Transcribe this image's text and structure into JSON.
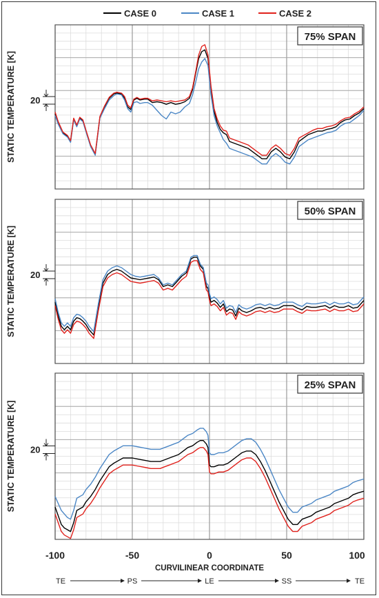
{
  "legend": [
    {
      "name": "CASE 0",
      "color": "#000000"
    },
    {
      "name": "CASE 1",
      "color": "#4a86c5"
    },
    {
      "name": "CASE 2",
      "color": "#e0201b"
    }
  ],
  "xlabel": "CURVILINEAR COORDINATE",
  "x_ticks": [
    "-100",
    "-50",
    "0",
    "50",
    "100"
  ],
  "region_labels": [
    "TE",
    "PS",
    "LE",
    "SS",
    "TE"
  ],
  "ylabel": "STATIC TEMPERATURE [K]",
  "scale_bar_label": "20",
  "chart_data": [
    {
      "type": "line",
      "title": "75% SPAN",
      "xlim": [
        -100,
        100
      ],
      "ylim": [
        -95,
        95
      ],
      "x": [
        -100,
        -98,
        -95,
        -92,
        -90,
        -88,
        -86,
        -84,
        -82,
        -80,
        -77,
        -74,
        -71,
        -68,
        -65,
        -62,
        -60,
        -57,
        -55,
        -53,
        -51,
        -49,
        -47,
        -45,
        -42,
        -40,
        -37,
        -34,
        -31,
        -28,
        -25,
        -22,
        -19,
        -16,
        -13,
        -11,
        -9,
        -7,
        -5,
        -3,
        -1,
        1,
        3,
        5,
        7,
        9,
        11,
        13,
        16,
        19,
        22,
        25,
        28,
        31,
        34,
        37,
        40,
        43,
        46,
        49,
        52,
        55,
        58,
        61,
        64,
        67,
        70,
        73,
        76,
        79,
        82,
        85,
        88,
        91,
        94,
        97,
        100
      ],
      "series": [
        {
          "name": "CASE 0",
          "values": [
            -8,
            -18,
            -30,
            -34,
            -40,
            -14,
            -22,
            -13,
            -16,
            -28,
            -45,
            -55,
            -12,
            0,
            10,
            15,
            16,
            15,
            10,
            0,
            -3,
            8,
            10,
            8,
            9,
            9,
            5,
            6,
            5,
            3,
            5,
            3,
            4,
            6,
            10,
            20,
            38,
            56,
            64,
            66,
            56,
            20,
            -5,
            -18,
            -26,
            -30,
            -32,
            -40,
            -42,
            -44,
            -46,
            -48,
            -52,
            -56,
            -60,
            -60,
            -52,
            -48,
            -52,
            -58,
            -60,
            -52,
            -40,
            -36,
            -32,
            -30,
            -28,
            -28,
            -26,
            -25,
            -23,
            -18,
            -15,
            -14,
            -10,
            -7,
            -2
          ]
        },
        {
          "name": "CASE 1",
          "values": [
            -10,
            -20,
            -31,
            -35,
            -41,
            -15,
            -23,
            -14,
            -17,
            -29,
            -46,
            -56,
            -13,
            -2,
            8,
            13,
            15,
            14,
            8,
            -2,
            -6,
            5,
            6,
            4,
            5,
            5,
            2,
            -4,
            -10,
            -14,
            -6,
            -8,
            -6,
            0,
            4,
            14,
            28,
            44,
            52,
            56,
            48,
            14,
            -10,
            -22,
            -30,
            -38,
            -42,
            -48,
            -50,
            -52,
            -54,
            -56,
            -58,
            -62,
            -66,
            -66,
            -58,
            -54,
            -58,
            -64,
            -66,
            -58,
            -46,
            -42,
            -38,
            -36,
            -34,
            -32,
            -30,
            -29,
            -27,
            -22,
            -19,
            -18,
            -14,
            -10,
            -4
          ]
        },
        {
          "name": "CASE 2",
          "values": [
            -6,
            -17,
            -29,
            -33,
            -39,
            -13,
            -21,
            -12,
            -15,
            -27,
            -44,
            -54,
            -11,
            1,
            11,
            16,
            17,
            16,
            12,
            2,
            -1,
            9,
            11,
            9,
            10,
            10,
            7,
            8,
            7,
            6,
            7,
            6,
            7,
            8,
            12,
            22,
            40,
            60,
            70,
            72,
            60,
            24,
            -2,
            -14,
            -22,
            -27,
            -28,
            -36,
            -38,
            -40,
            -42,
            -44,
            -48,
            -52,
            -56,
            -56,
            -48,
            -44,
            -48,
            -54,
            -56,
            -48,
            -36,
            -33,
            -30,
            -27,
            -25,
            -25,
            -23,
            -22,
            -20,
            -16,
            -13,
            -12,
            -8,
            -5,
            0
          ]
        }
      ]
    },
    {
      "type": "line",
      "title": "50% SPAN",
      "xlim": [
        -100,
        100
      ],
      "ylim": [
        -95,
        95
      ],
      "x": [
        -100,
        -98,
        -96,
        -94,
        -92,
        -90,
        -88,
        -86,
        -84,
        -82,
        -80,
        -78,
        -75,
        -72,
        -69,
        -66,
        -63,
        -60,
        -57,
        -54,
        -51,
        -48,
        -45,
        -42,
        -39,
        -36,
        -33,
        -30,
        -27,
        -24,
        -21,
        -18,
        -15,
        -12,
        -10,
        -8,
        -6,
        -4,
        -2,
        -1,
        0,
        1,
        3,
        5,
        7,
        9,
        11,
        13,
        15,
        17,
        19,
        21,
        24,
        27,
        30,
        33,
        36,
        39,
        42,
        45,
        48,
        51,
        54,
        57,
        60,
        63,
        66,
        69,
        72,
        75,
        78,
        81,
        84,
        87,
        90,
        93,
        96,
        100
      ],
      "series": [
        {
          "name": "CASE 0",
          "values": [
            -24,
            -40,
            -52,
            -56,
            -52,
            -56,
            -46,
            -42,
            -43,
            -46,
            -50,
            -56,
            -62,
            -30,
            -2,
            8,
            12,
            14,
            12,
            8,
            4,
            3,
            2,
            3,
            4,
            5,
            2,
            -6,
            -4,
            -6,
            0,
            6,
            10,
            26,
            28,
            28,
            18,
            14,
            -6,
            -8,
            -18,
            -24,
            -22,
            -25,
            -30,
            -26,
            -35,
            -32,
            -33,
            -40,
            -31,
            -34,
            -36,
            -34,
            -31,
            -30,
            -32,
            -30,
            -32,
            -31,
            -28,
            -28,
            -28,
            -31,
            -33,
            -29,
            -30,
            -30,
            -29,
            -28,
            -31,
            -28,
            -30,
            -30,
            -28,
            -31,
            -30,
            -22
          ]
        },
        {
          "name": "CASE 1",
          "values": [
            -20,
            -36,
            -48,
            -52,
            -48,
            -52,
            -42,
            -38,
            -39,
            -42,
            -46,
            -52,
            -58,
            -26,
            2,
            12,
            16,
            18,
            16,
            12,
            8,
            6,
            5,
            6,
            7,
            8,
            4,
            -4,
            -2,
            -4,
            2,
            8,
            12,
            28,
            30,
            30,
            20,
            16,
            -2,
            -4,
            -14,
            -20,
            -18,
            -21,
            -26,
            -22,
            -31,
            -28,
            -29,
            -36,
            -27,
            -30,
            -32,
            -30,
            -27,
            -26,
            -28,
            -26,
            -28,
            -27,
            -24,
            -24,
            -24,
            -27,
            -29,
            -25,
            -26,
            -26,
            -25,
            -24,
            -27,
            -24,
            -26,
            -26,
            -24,
            -27,
            -26,
            -18
          ]
        },
        {
          "name": "CASE 2",
          "values": [
            -28,
            -44,
            -56,
            -60,
            -56,
            -60,
            -50,
            -46,
            -47,
            -50,
            -54,
            -60,
            -66,
            -34,
            -6,
            4,
            8,
            10,
            8,
            4,
            0,
            -1,
            -2,
            -1,
            0,
            1,
            -2,
            -10,
            -8,
            -10,
            -4,
            2,
            6,
            22,
            24,
            24,
            14,
            10,
            -10,
            -12,
            -22,
            -28,
            -26,
            -29,
            -34,
            -30,
            -39,
            -36,
            -37,
            -44,
            -35,
            -38,
            -40,
            -38,
            -35,
            -34,
            -36,
            -34,
            -36,
            -35,
            -32,
            -32,
            -32,
            -35,
            -37,
            -33,
            -34,
            -34,
            -33,
            -32,
            -35,
            -32,
            -34,
            -34,
            -32,
            -35,
            -34,
            -26
          ]
        }
      ]
    },
    {
      "type": "line",
      "title": "25% SPAN",
      "xlim": [
        -100,
        100
      ],
      "ylim": [
        -95,
        95
      ],
      "x": [
        -100,
        -98,
        -96,
        -94,
        -92,
        -90,
        -88,
        -86,
        -84,
        -82,
        -80,
        -77,
        -74,
        -71,
        -68,
        -65,
        -62,
        -59,
        -56,
        -53,
        -50,
        -47,
        -44,
        -41,
        -38,
        -35,
        -32,
        -29,
        -26,
        -23,
        -20,
        -17,
        -14,
        -11,
        -8,
        -6,
        -4,
        -2,
        -1,
        0,
        1,
        3,
        6,
        9,
        12,
        15,
        18,
        21,
        24,
        27,
        30,
        33,
        36,
        39,
        42,
        45,
        48,
        51,
        54,
        57,
        60,
        63,
        66,
        69,
        72,
        75,
        78,
        81,
        84,
        87,
        90,
        93,
        96,
        100
      ],
      "series": [
        {
          "name": "CASE 0",
          "values": [
            -58,
            -68,
            -78,
            -82,
            -84,
            -86,
            -76,
            -62,
            -60,
            -58,
            -52,
            -46,
            -38,
            -28,
            -20,
            -12,
            -8,
            -5,
            -2,
            -2,
            -2,
            -3,
            -4,
            -5,
            -6,
            -6,
            -6,
            -4,
            -2,
            0,
            2,
            6,
            10,
            12,
            16,
            18,
            18,
            14,
            10,
            -10,
            -12,
            -12,
            -10,
            -10,
            -8,
            -4,
            0,
            4,
            6,
            6,
            2,
            -6,
            -16,
            -28,
            -40,
            -52,
            -62,
            -72,
            -78,
            -78,
            -72,
            -70,
            -68,
            -64,
            -62,
            -60,
            -58,
            -54,
            -52,
            -50,
            -48,
            -44,
            -42,
            -40
          ]
        },
        {
          "name": "CASE 1",
          "values": [
            -46,
            -54,
            -62,
            -66,
            -70,
            -72,
            -62,
            -48,
            -46,
            -44,
            -38,
            -32,
            -24,
            -14,
            -6,
            2,
            6,
            9,
            12,
            12,
            12,
            11,
            10,
            9,
            8,
            8,
            8,
            10,
            12,
            14,
            16,
            20,
            24,
            26,
            30,
            32,
            32,
            28,
            24,
            4,
            2,
            2,
            4,
            4,
            6,
            10,
            14,
            18,
            20,
            20,
            16,
            8,
            -2,
            -14,
            -26,
            -38,
            -48,
            -58,
            -64,
            -64,
            -58,
            -56,
            -54,
            -50,
            -48,
            -46,
            -44,
            -40,
            -38,
            -36,
            -34,
            -30,
            -28,
            -26
          ]
        },
        {
          "name": "CASE 2",
          "values": [
            -66,
            -76,
            -86,
            -90,
            -92,
            -94,
            -84,
            -70,
            -68,
            -66,
            -60,
            -54,
            -46,
            -36,
            -28,
            -20,
            -16,
            -13,
            -10,
            -10,
            -10,
            -11,
            -12,
            -13,
            -14,
            -14,
            -14,
            -12,
            -10,
            -8,
            -6,
            -2,
            2,
            4,
            8,
            10,
            10,
            6,
            2,
            -18,
            -20,
            -20,
            -18,
            -18,
            -16,
            -12,
            -8,
            -4,
            -2,
            -2,
            -6,
            -14,
            -24,
            -36,
            -48,
            -60,
            -70,
            -80,
            -86,
            -86,
            -80,
            -78,
            -76,
            -72,
            -70,
            -68,
            -66,
            -62,
            -60,
            -58,
            -56,
            -52,
            -50,
            -48
          ]
        }
      ]
    }
  ]
}
